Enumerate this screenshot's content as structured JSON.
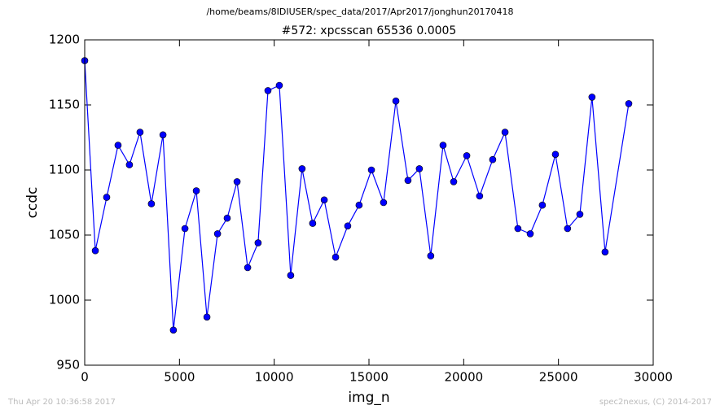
{
  "chart_data": {
    "type": "line",
    "suptitle": "/home/beams/8IDIUSER/spec_data/2017/Apr2017/jonghun20170418",
    "title": "#572: xpcsscan 65536 0.0005",
    "x_label": "img_n",
    "y_label": "ccdc",
    "footer_left": "Thu Apr 20 10:36:58 2017",
    "footer_right": "spec2nexus, (C) 2014-2017",
    "color": "#0000ff",
    "x": [
      0,
      560,
      1160,
      1760,
      2360,
      2920,
      3520,
      4130,
      4680,
      5290,
      5890,
      6450,
      7010,
      7520,
      8040,
      8600,
      9150,
      9670,
      10270,
      10870,
      11470,
      12030,
      12640,
      13240,
      13880,
      14480,
      15130,
      15770,
      16420,
      17060,
      17660,
      18260,
      18910,
      19470,
      20160,
      20840,
      21530,
      22180,
      22860,
      23510,
      24150,
      24840,
      25480,
      26130,
      26770,
      27460,
      28710
    ],
    "values": [
      1184,
      1038,
      1079,
      1119,
      1104,
      1129,
      1074,
      1127,
      977,
      1055,
      1084,
      987,
      1051,
      1063,
      1091,
      1025,
      1044,
      1161,
      1165,
      1019,
      1101,
      1059,
      1077,
      1033,
      1057,
      1073,
      1100,
      1075,
      1153,
      1092,
      1101,
      1034,
      1119,
      1091,
      1111,
      1080,
      1108,
      1129,
      1055,
      1051,
      1073,
      1112,
      1055,
      1066,
      1156,
      1037,
      1151
    ],
    "xlim": [
      0,
      30000
    ],
    "xticks": [
      0,
      5000,
      10000,
      15000,
      20000,
      25000,
      30000
    ],
    "ylim": [
      950,
      1200
    ],
    "yticks": [
      950,
      1000,
      1050,
      1100,
      1150,
      1200
    ],
    "grid": false
  }
}
